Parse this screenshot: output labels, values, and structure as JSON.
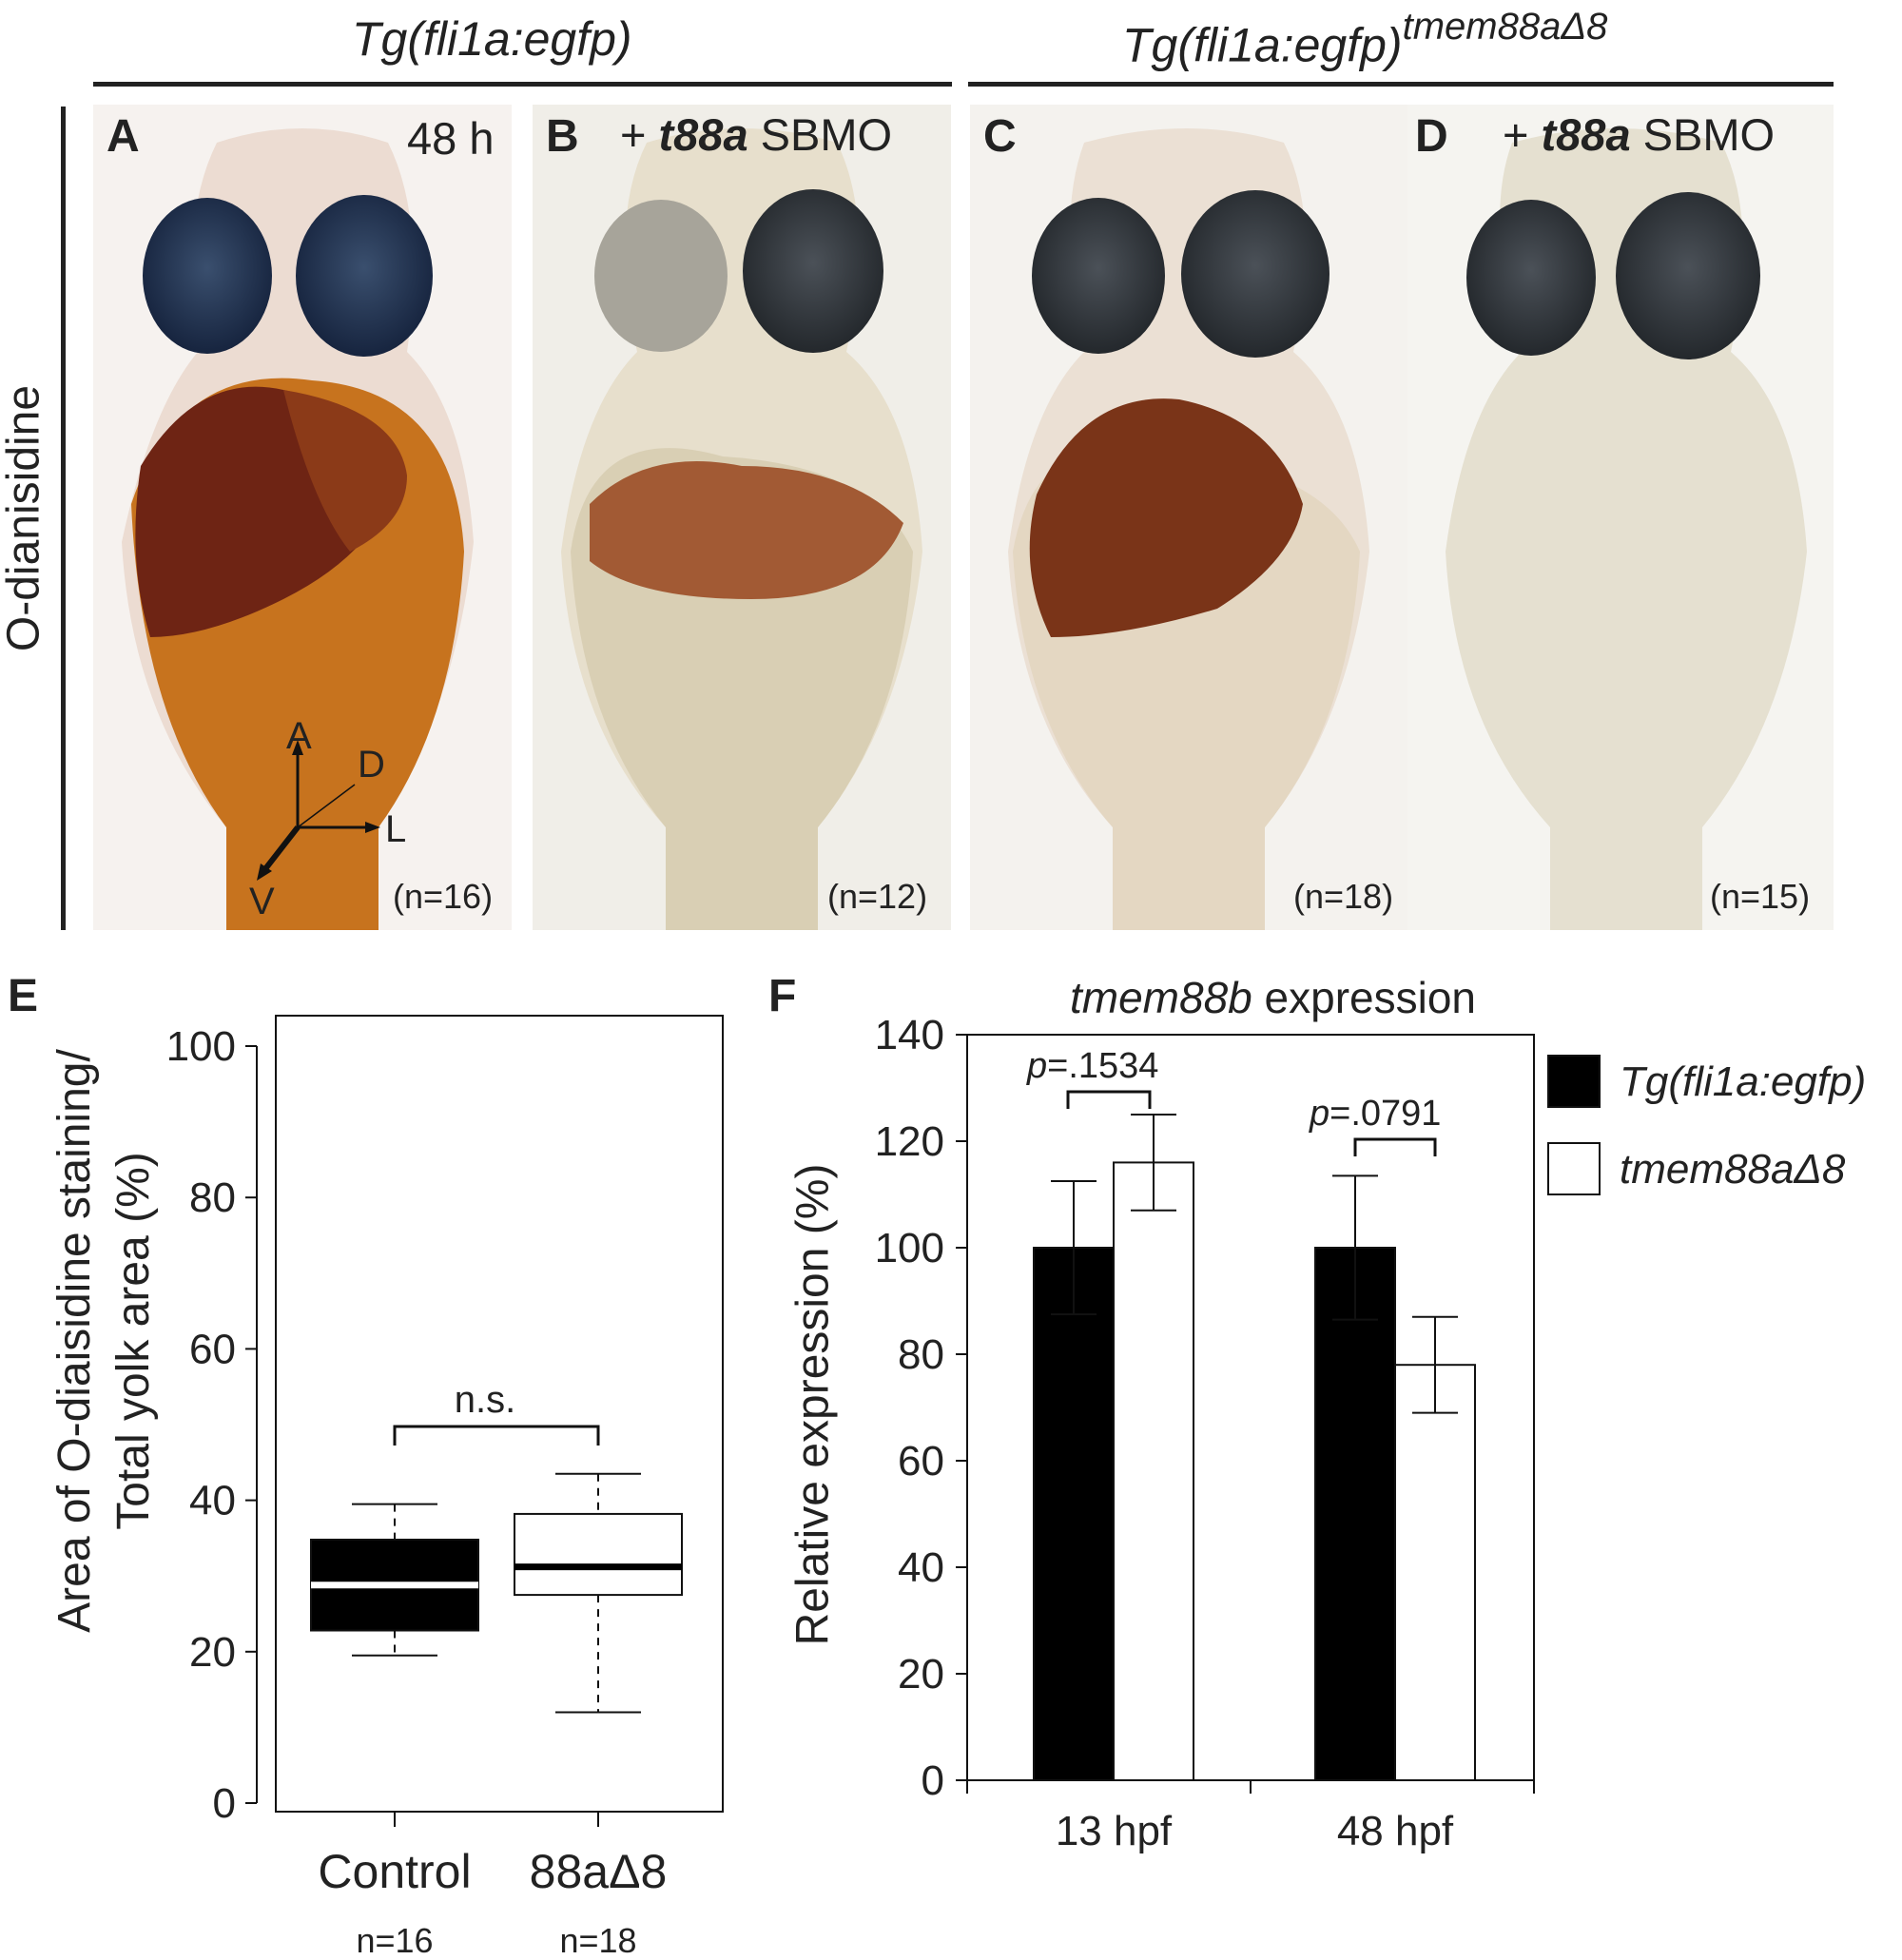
{
  "header": {
    "left_label": "Tg(fli1a:egfp)",
    "right_label": "Tg(fli1a:egfp)",
    "right_superscript": "tmem88aΔ8"
  },
  "stain_label": "O-dianisidine",
  "panels": [
    {
      "letter": "A",
      "caption": "48 h",
      "n": "(n=16)"
    },
    {
      "letter": "B",
      "caption_prefix": "+ ",
      "caption_italic": "t88a",
      "caption_suffix": " SBMO",
      "n": "(n=12)"
    },
    {
      "letter": "C",
      "n": "(n=18)"
    },
    {
      "letter": "D",
      "caption_prefix": "+ ",
      "caption_italic": "t88a",
      "caption_suffix": " SBMO",
      "n": "(n=15)"
    }
  ],
  "axes_cross": {
    "a": "A",
    "d": "D",
    "l": "L",
    "v": "V"
  },
  "colors": {
    "yolk_brown": "#6e2414",
    "yolk_tan": "#c9b98f",
    "eye_dark": "#1d2d44",
    "bar_black": "#000000",
    "bar_white": "#ffffff"
  },
  "panel_e": {
    "letter": "E",
    "ylabel_line1": "Area of O-diaisidine staining/",
    "ylabel_line2": "Total yolk area (%)",
    "significance": "n.s.",
    "n_labels": [
      "n=16",
      "n=18"
    ]
  },
  "panel_f": {
    "letter": "F",
    "title_italic": "tmem88b",
    "title_rest": " expression",
    "ylabel": "Relative expression (%)",
    "p_values": [
      {
        "p": "p",
        "value": "=.1534"
      },
      {
        "p": "p",
        "value": "=.0791"
      }
    ]
  },
  "chart_data": [
    {
      "type": "box",
      "categories": [
        "Control",
        "88aΔ8"
      ],
      "boxes": [
        {
          "whisker_low": 19.5,
          "q1": 22.8,
          "median": 28.8,
          "q3": 34.8,
          "whisker_high": 39.5,
          "fill": "#000000"
        },
        {
          "whisker_low": 12.0,
          "q1": 27.5,
          "median": 31.2,
          "q3": 38.2,
          "whisker_high": 43.5,
          "fill": "#ffffff"
        }
      ],
      "ylim": [
        0,
        100
      ],
      "yticks": [
        0,
        20,
        40,
        60,
        80,
        100
      ]
    },
    {
      "type": "bar",
      "categories": [
        "13 hpf",
        "48 hpf"
      ],
      "series": [
        {
          "name": "Tg(fli1a:egfp)",
          "values": [
            100,
            100
          ],
          "errors": [
            12.5,
            13.5
          ],
          "color": "#000000"
        },
        {
          "name": "tmem88aΔ8",
          "values": [
            116,
            78
          ],
          "errors": [
            9,
            9
          ],
          "color": "#ffffff"
        }
      ],
      "ylim": [
        0,
        140
      ],
      "yticks": [
        0,
        20,
        40,
        60,
        80,
        100,
        120,
        140
      ],
      "legend": "right"
    }
  ]
}
